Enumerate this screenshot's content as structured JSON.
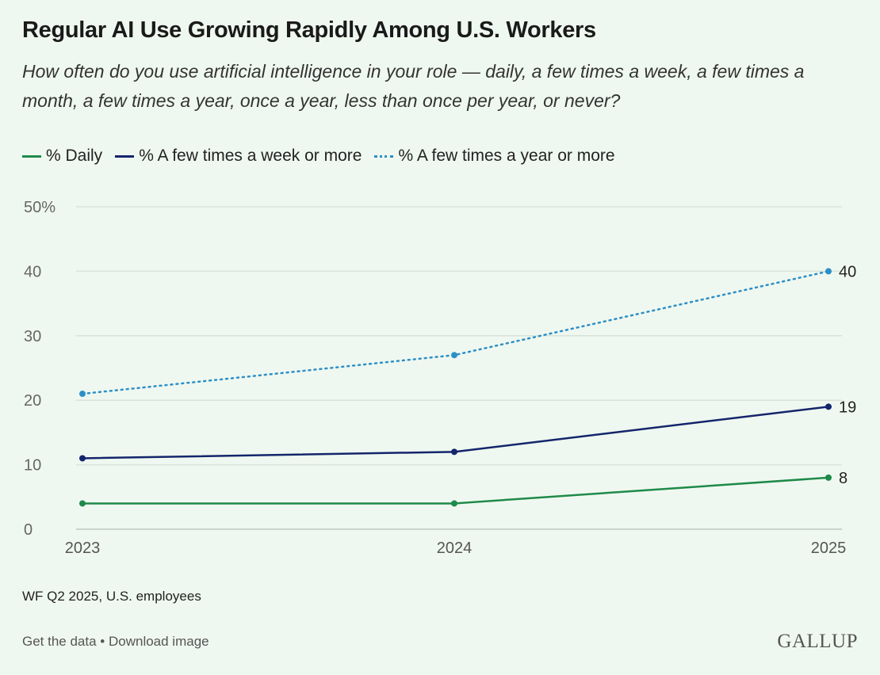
{
  "title": "Regular AI Use Growing Rapidly Among U.S. Workers",
  "subtitle": "How often do you use artificial intelligence in your role — daily, a few times a week, a few times a month, a few times a year, once a year, less than once per year, or never?",
  "note": "WF Q2 2025, U.S. employees",
  "links": {
    "get_data": "Get the data",
    "sep": " • ",
    "download": "Download image"
  },
  "logo": "GALLUP",
  "chart_data": {
    "type": "line",
    "title": "Regular AI Use Growing Rapidly Among U.S. Workers",
    "x": [
      "2023",
      "2024",
      "2025"
    ],
    "ylim": [
      0,
      50
    ],
    "yticks": [
      "0",
      "10",
      "20",
      "30",
      "40",
      "50%"
    ],
    "grid": true,
    "legend_position": "top-left",
    "series": [
      {
        "name": "% Daily",
        "values": [
          4,
          4,
          8
        ],
        "color": "#1e8a4a",
        "style": "solid",
        "end_label": "8"
      },
      {
        "name": "% A few times a week or more",
        "values": [
          11,
          12,
          19
        ],
        "color": "#13256b",
        "style": "solid",
        "end_label": "19"
      },
      {
        "name": "% A few times a year or more",
        "values": [
          21,
          27,
          40
        ],
        "color": "#2e8fc7",
        "style": "dotted",
        "end_label": "40"
      }
    ]
  }
}
